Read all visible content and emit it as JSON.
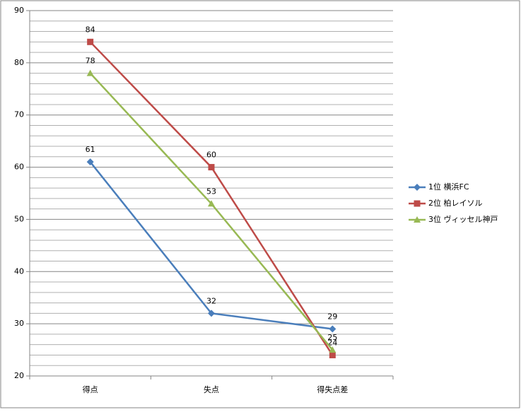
{
  "chart_data": {
    "type": "line",
    "categories": [
      "得点",
      "失点",
      "得失点差"
    ],
    "series": [
      {
        "name": "1位 横浜FC",
        "color": "#4a7ebb",
        "marker": "diamond",
        "values": [
          61,
          32,
          29
        ]
      },
      {
        "name": "2位 柏レイソル",
        "color": "#be4b48",
        "marker": "square",
        "values": [
          84,
          60,
          24
        ]
      },
      {
        "name": "3位 ヴィッセル神戸",
        "color": "#98b954",
        "marker": "triangle",
        "values": [
          78,
          53,
          25
        ]
      }
    ],
    "ylim": [
      20,
      90
    ],
    "yticks": [
      20,
      30,
      40,
      50,
      60,
      70,
      80,
      90
    ],
    "yminorticks": [
      22,
      24,
      26,
      28,
      32,
      34,
      36,
      38,
      42,
      44,
      46,
      48,
      52,
      54,
      56,
      58,
      62,
      64,
      66,
      68,
      72,
      74,
      76,
      78,
      82,
      84,
      86,
      88
    ],
    "grid": true,
    "data_labels": true,
    "legend": "right"
  }
}
